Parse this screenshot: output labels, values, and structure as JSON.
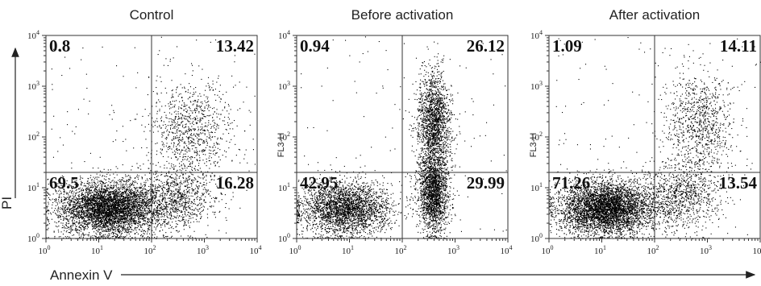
{
  "axes": {
    "x_label": "Annexin V",
    "y_label": "PI"
  },
  "chart_data": [
    {
      "type": "scatter",
      "title": "Control",
      "ylabel": "",
      "x_scale": "log",
      "y_scale": "log",
      "xlim": [
        1,
        10000
      ],
      "ylim": [
        1,
        10000
      ],
      "gate": {
        "x": 100,
        "y": 20
      },
      "x_ticks": [
        "10",
        "10",
        "10",
        "10",
        "10"
      ],
      "x_tick_exp": [
        "0",
        "1",
        "2",
        "3",
        "4"
      ],
      "y_ticks": [
        "10",
        "10",
        "10",
        "10",
        "10"
      ],
      "y_tick_exp": [
        "0",
        "1",
        "2",
        "3",
        "4"
      ],
      "quadrants": {
        "upper_left": "0.8",
        "upper_right": "13.42",
        "lower_left": "69.5",
        "lower_right": "16.28"
      },
      "populations": [
        {
          "cx": 15,
          "cy": 4,
          "sx": 0.42,
          "sy": 0.24,
          "fraction": 0.7
        },
        {
          "cx": 250,
          "cy": 6,
          "sx": 0.38,
          "sy": 0.3,
          "fraction": 0.16
        },
        {
          "cx": 600,
          "cy": 150,
          "sx": 0.35,
          "sy": 0.45,
          "fraction": 0.14
        }
      ]
    },
    {
      "type": "scatter",
      "title": "Before activation",
      "ylabel": "FL3-H",
      "x_scale": "log",
      "y_scale": "log",
      "xlim": [
        1,
        10000
      ],
      "ylim": [
        1,
        10000
      ],
      "gate": {
        "x": 100,
        "y": 20
      },
      "x_ticks": [
        "10",
        "10",
        "10",
        "10",
        "10"
      ],
      "x_tick_exp": [
        "0",
        "1",
        "2",
        "3",
        "4"
      ],
      "y_ticks": [
        "10",
        "10",
        "10",
        "10",
        "10"
      ],
      "y_tick_exp": [
        "0",
        "1",
        "2",
        "3",
        "4"
      ],
      "quadrants": {
        "upper_left": "0.94",
        "upper_right": "26.12",
        "lower_left": "42.95",
        "lower_right": "29.99"
      },
      "populations": [
        {
          "cx": 8,
          "cy": 4,
          "sx": 0.38,
          "sy": 0.24,
          "fraction": 0.43
        },
        {
          "cx": 380,
          "cy": 8,
          "sx": 0.13,
          "sy": 0.35,
          "fraction": 0.3
        },
        {
          "cx": 400,
          "cy": 200,
          "sx": 0.14,
          "sy": 0.45,
          "fraction": 0.27
        }
      ]
    },
    {
      "type": "scatter",
      "title": "After activation",
      "ylabel": "FL3-H",
      "x_scale": "log",
      "y_scale": "log",
      "xlim": [
        1,
        10000
      ],
      "ylim": [
        1,
        10000
      ],
      "gate": {
        "x": 100,
        "y": 20
      },
      "x_ticks": [
        "10",
        "10",
        "10",
        "10",
        "10"
      ],
      "x_tick_exp": [
        "0",
        "1",
        "2",
        "3",
        "4"
      ],
      "y_ticks": [
        "10",
        "10",
        "10",
        "10",
        "10"
      ],
      "y_tick_exp": [
        "0",
        "1",
        "2",
        "3",
        "4"
      ],
      "quadrants": {
        "upper_left": "1.09",
        "upper_right": "14.11",
        "lower_left": "71.26",
        "lower_right": "13.54"
      },
      "populations": [
        {
          "cx": 12,
          "cy": 4,
          "sx": 0.4,
          "sy": 0.24,
          "fraction": 0.71
        },
        {
          "cx": 300,
          "cy": 7,
          "sx": 0.35,
          "sy": 0.3,
          "fraction": 0.15
        },
        {
          "cx": 700,
          "cy": 200,
          "sx": 0.3,
          "sy": 0.45,
          "fraction": 0.14
        }
      ]
    }
  ]
}
